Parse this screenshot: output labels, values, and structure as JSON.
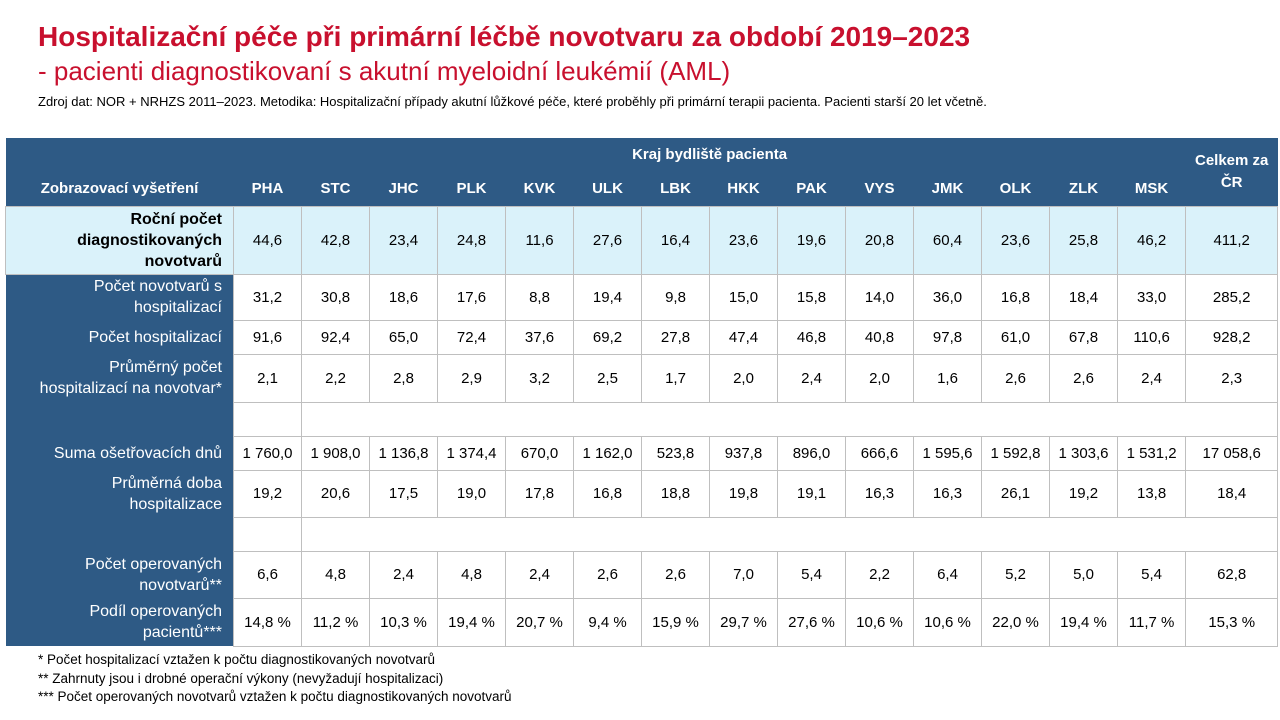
{
  "title": "Hospitalizační péče při primární léčbě novotvaru za období 2019–2023",
  "subtitle": "- pacienti diagnostikovaní s akutní myeloidní leukémií (AML)",
  "source_note": "Zdroj dat: NOR + NRHZS 2011–2023. Metodika: Hospitalizační případy akutní lůžkové péče, které proběhly při primární terapii pacienta. Pacienti starší 20 let včetně.",
  "colors": {
    "title": "#C8102E",
    "header_bg": "#2E5A85",
    "highlight_row_bg": "#DAF2FA",
    "grid_line": "#BFBFBF"
  },
  "table": {
    "row_header": "Zobrazovací vyšetření",
    "group_header": "Kraj bydliště pacienta",
    "columns": [
      "PHA",
      "STC",
      "JHC",
      "PLK",
      "KVK",
      "ULK",
      "LBK",
      "HKK",
      "PAK",
      "VYS",
      "JMK",
      "OLK",
      "ZLK",
      "MSK"
    ],
    "total_header": "Celkem za ČR",
    "rows": [
      {
        "label": "Roční počet\ndiagnostikovaných\nnovotvarů",
        "values": [
          "44,6",
          "42,8",
          "23,4",
          "24,8",
          "11,6",
          "27,6",
          "16,4",
          "23,6",
          "19,6",
          "20,8",
          "60,4",
          "23,6",
          "25,8",
          "46,2",
          "411,2"
        ]
      },
      {
        "label": "Počet novotvarů s\nhospitalizací",
        "values": [
          "31,2",
          "30,8",
          "18,6",
          "17,6",
          "8,8",
          "19,4",
          "9,8",
          "15,0",
          "15,8",
          "14,0",
          "36,0",
          "16,8",
          "18,4",
          "33,0",
          "285,2"
        ]
      },
      {
        "label": "Počet hospitalizací",
        "values": [
          "91,6",
          "92,4",
          "65,0",
          "72,4",
          "37,6",
          "69,2",
          "27,8",
          "47,4",
          "46,8",
          "40,8",
          "97,8",
          "61,0",
          "67,8",
          "110,6",
          "928,2"
        ]
      },
      {
        "label": "Průměrný počet\nhospitalizací na novotvar*",
        "values": [
          "2,1",
          "2,2",
          "2,8",
          "2,9",
          "3,2",
          "2,5",
          "1,7",
          "2,0",
          "2,4",
          "2,0",
          "1,6",
          "2,6",
          "2,6",
          "2,4",
          "2,3"
        ]
      },
      {
        "label": "",
        "values": []
      },
      {
        "label": "Suma ošetřovacích dnů",
        "values": [
          "1 760,0",
          "1 908,0",
          "1 136,8",
          "1 374,4",
          "670,0",
          "1 162,0",
          "523,8",
          "937,8",
          "896,0",
          "666,6",
          "1 595,6",
          "1 592,8",
          "1 303,6",
          "1 531,2",
          "17 058,6"
        ]
      },
      {
        "label": "Průměrná doba\nhospitalizace",
        "values": [
          "19,2",
          "20,6",
          "17,5",
          "19,0",
          "17,8",
          "16,8",
          "18,8",
          "19,8",
          "19,1",
          "16,3",
          "16,3",
          "26,1",
          "19,2",
          "13,8",
          "18,4"
        ]
      },
      {
        "label": "",
        "values": []
      },
      {
        "label": "Počet operovaných\nnovotvarů**",
        "values": [
          "6,6",
          "4,8",
          "2,4",
          "4,8",
          "2,4",
          "2,6",
          "2,6",
          "7,0",
          "5,4",
          "2,2",
          "6,4",
          "5,2",
          "5,0",
          "5,4",
          "62,8"
        ]
      },
      {
        "label": "Podíl operovaných\npacientů***",
        "values": [
          "14,8 %",
          "11,2 %",
          "10,3 %",
          "19,4 %",
          "20,7 %",
          "9,4 %",
          "15,9 %",
          "29,7 %",
          "27,6 %",
          "10,6 %",
          "10,6 %",
          "22,0 %",
          "19,4 %",
          "11,7 %",
          "15,3 %"
        ]
      }
    ]
  },
  "footnotes": [
    "* Počet hospitalizací vztažen k počtu diagnostikovaných novotvarů",
    "** Zahrnuty jsou i drobné operační výkony (nevyžadují hospitalizaci)",
    "*** Počet operovaných novotvarů vztažen k počtu diagnostikovaných novotvarů"
  ]
}
